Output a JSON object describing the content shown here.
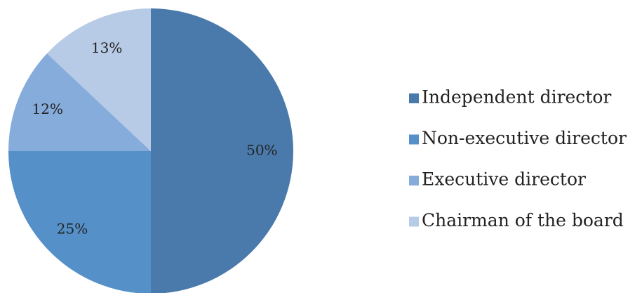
{
  "chart_data": {
    "type": "pie",
    "categories": [
      "Independent director",
      "Non-executive director",
      "Executive director",
      "Chairman of the board"
    ],
    "values": [
      50,
      25,
      12,
      13
    ],
    "value_labels": [
      "50%",
      "25%",
      "12%",
      "13%"
    ],
    "colors": [
      "#4a7aab",
      "#5590c8",
      "#86acdb",
      "#b8cbe6"
    ],
    "legend": "right"
  }
}
